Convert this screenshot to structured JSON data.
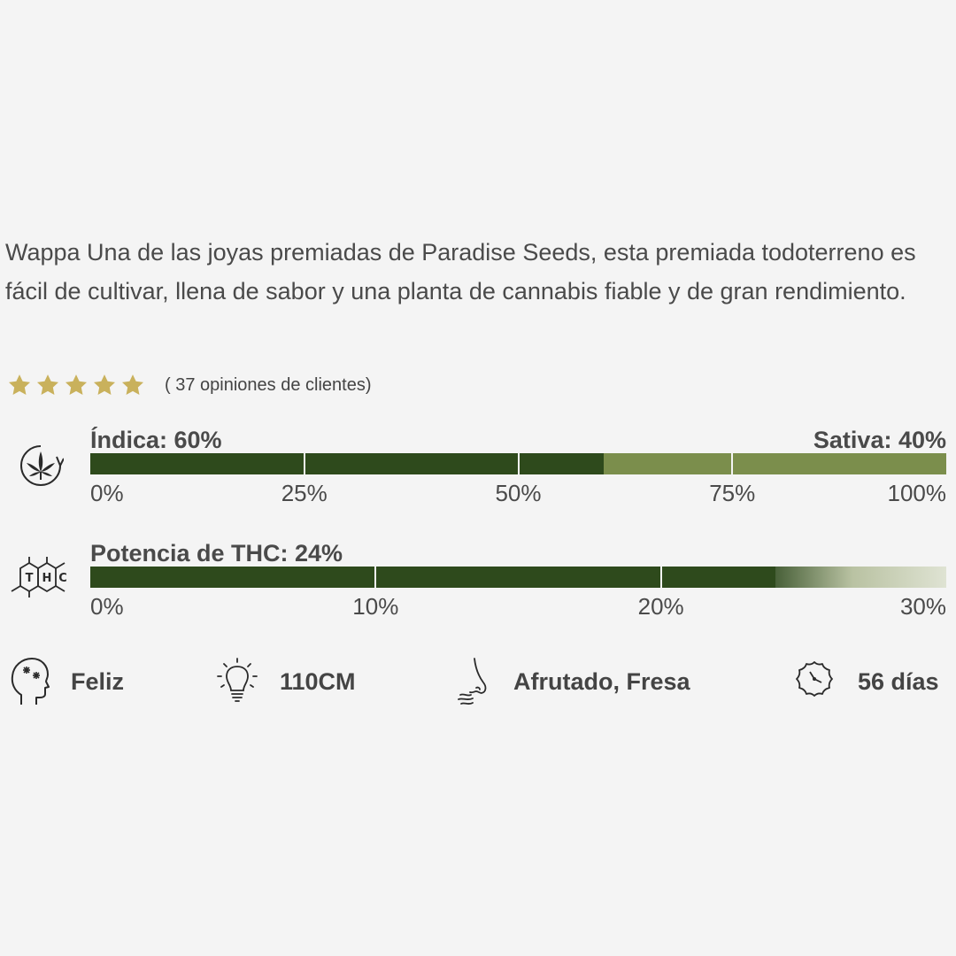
{
  "product": {
    "description": "Wappa Una de las joyas premiadas de Paradise Seeds, esta premiada todoterreno es fácil de cultivar, llena de sabor y una planta de cannabis fiable y de gran rendimiento."
  },
  "rating": {
    "stars": 5,
    "max_stars": 5,
    "reviews_text": "( 37 opiniones de clientes)",
    "star_color": "#c9b15c"
  },
  "genetics": {
    "icon": "cannabis-leaf-cycle-icon",
    "indica_label": "Índica: 60%",
    "sativa_label": "Sativa: 40%",
    "indica_fraction": 0.6,
    "indica_color": "#2e4a1c",
    "sativa_color": "#7b8e4c",
    "scale": [
      "0%",
      "25%",
      "50%",
      "75%",
      "100%"
    ]
  },
  "thc": {
    "icon": "thc-molecule-icon",
    "label": "Potencia de THC: 24%",
    "value_percent": 24,
    "max_percent": 30,
    "fill_color": "#2e4a1c",
    "scale": [
      "0%",
      "10%",
      "20%",
      "30%"
    ]
  },
  "features": [
    {
      "icon": "head-effect-icon",
      "label": "Feliz"
    },
    {
      "icon": "lightbulb-icon",
      "label": "110CM"
    },
    {
      "icon": "nose-smell-icon",
      "label": "Afrutado, Fresa"
    },
    {
      "icon": "flowering-clock-icon",
      "label": "56 días"
    }
  ]
}
